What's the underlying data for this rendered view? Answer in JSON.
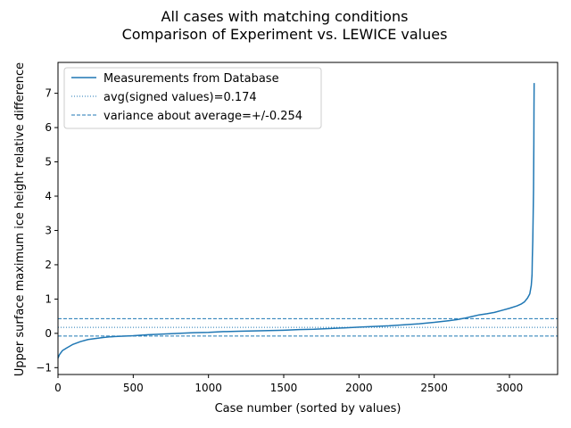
{
  "chart_data": {
    "type": "line",
    "title": "All cases with matching conditions",
    "subtitle": "Comparison of Experiment vs. LEWICE values",
    "xlabel": "Case number (sorted by values)",
    "ylabel": "Upper surface maximum ice height relative difference",
    "xlim": [
      0,
      3320
    ],
    "ylim": [
      -1.2,
      7.9
    ],
    "xticks": [
      0,
      500,
      1000,
      1500,
      2000,
      2500,
      3000
    ],
    "yticks": [
      -1,
      0,
      1,
      2,
      3,
      4,
      5,
      6,
      7
    ],
    "grid": false,
    "legend_position": "upper-left",
    "series_color": "#1f77b4",
    "series": [
      {
        "name": "Measurements from Database",
        "style": "solid",
        "x": [
          0,
          10,
          30,
          60,
          100,
          150,
          200,
          250,
          300,
          350,
          400,
          500,
          600,
          700,
          800,
          900,
          1000,
          1100,
          1200,
          1300,
          1400,
          1500,
          1600,
          1700,
          1800,
          1900,
          2000,
          2100,
          2200,
          2300,
          2400,
          2500,
          2600,
          2650,
          2700,
          2750,
          2800,
          2850,
          2900,
          2950,
          3000,
          3050,
          3080,
          3100,
          3120,
          3135,
          3145,
          3150,
          3152,
          3155,
          3157,
          3160,
          3162,
          3163,
          3164
        ],
        "y": [
          -0.72,
          -0.62,
          -0.5,
          -0.42,
          -0.32,
          -0.24,
          -0.18,
          -0.15,
          -0.12,
          -0.1,
          -0.09,
          -0.07,
          -0.04,
          -0.02,
          0.0,
          0.02,
          0.03,
          0.05,
          0.06,
          0.07,
          0.08,
          0.09,
          0.11,
          0.12,
          0.14,
          0.16,
          0.18,
          0.2,
          0.22,
          0.25,
          0.28,
          0.32,
          0.37,
          0.4,
          0.44,
          0.49,
          0.54,
          0.57,
          0.61,
          0.67,
          0.73,
          0.8,
          0.86,
          0.92,
          1.03,
          1.15,
          1.4,
          1.7,
          2.2,
          2.7,
          3.3,
          4.2,
          5.5,
          6.6,
          7.3
        ]
      },
      {
        "name": "avg(signed values)=0.174",
        "style": "dotted",
        "y_const": 0.174
      },
      {
        "name": "variance about average=+/-0.254",
        "style": "dashed",
        "y_const": [
          0.428,
          -0.08
        ]
      }
    ]
  }
}
